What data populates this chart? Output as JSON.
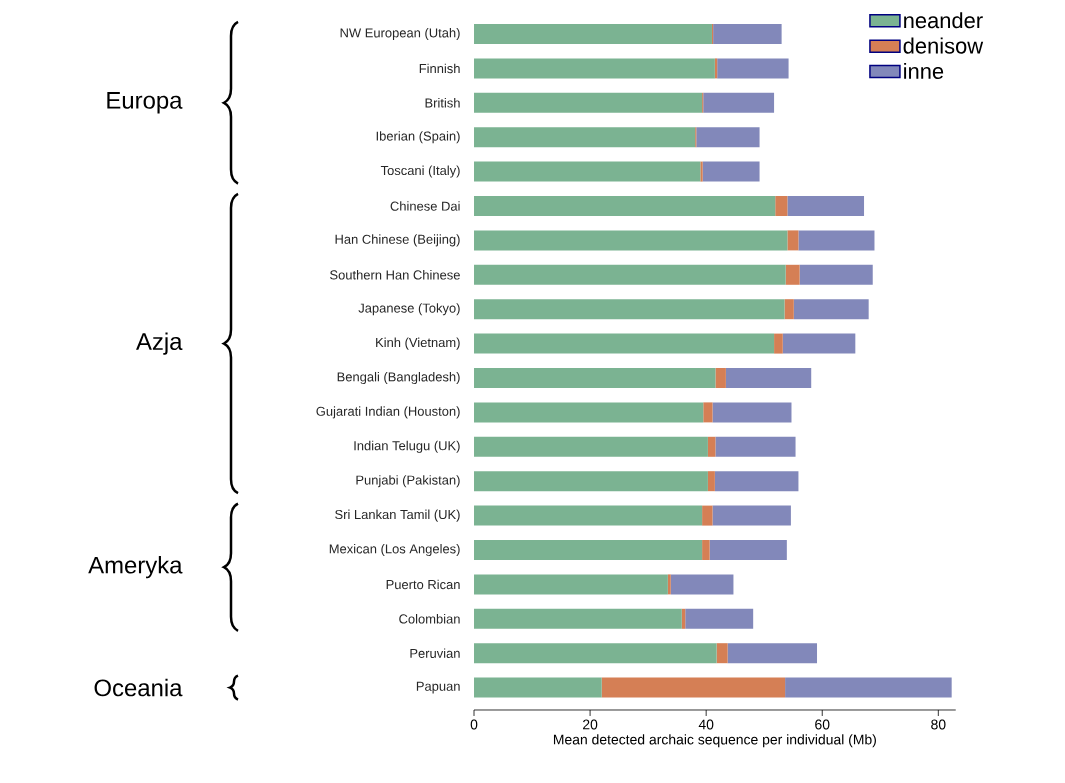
{
  "chart_data": {
    "type": "bar",
    "orientation": "horizontal",
    "stacked": true,
    "categories": [
      "NW European (Utah)",
      "Finnish",
      "British",
      "Iberian (Spain)",
      "Toscani (Italy)",
      "Chinese Dai",
      "Han Chinese (Beijing)",
      "Southern Han Chinese",
      "Japanese (Tokyo)",
      "Kinh (Vietnam)",
      "Bengali (Bangladesh)",
      "Gujarati Indian (Houston)",
      "Indian Telugu (UK)",
      "Punjabi (Pakistan)",
      "Sri Lankan Tamil (UK)",
      "Mexican (Los Angeles)",
      "Puerto Rican",
      "Colombian",
      "Peruvian",
      "Papuan"
    ],
    "series": [
      {
        "name": "neander",
        "color": "#7bb392",
        "values": [
          41.0,
          41.5,
          39.3,
          38.1,
          39.0,
          51.9,
          54.0,
          53.7,
          53.5,
          51.7,
          41.6,
          39.5,
          40.3,
          40.3,
          39.3,
          39.3,
          33.4,
          35.8,
          41.8,
          22.0
        ]
      },
      {
        "name": "denisow",
        "color": "#d57f55",
        "values": [
          0.2,
          0.4,
          0.2,
          0.2,
          0.4,
          2.1,
          1.9,
          2.4,
          1.6,
          1.5,
          1.8,
          1.6,
          1.3,
          1.2,
          1.8,
          1.3,
          0.5,
          0.6,
          1.9,
          31.6
        ]
      },
      {
        "name": "inne",
        "color": "#8288ba",
        "values": [
          11.8,
          12.3,
          12.2,
          10.9,
          9.8,
          13.2,
          13.1,
          12.6,
          12.9,
          12.5,
          14.7,
          13.6,
          13.8,
          14.4,
          13.5,
          13.3,
          10.8,
          11.7,
          15.4,
          28.7
        ]
      }
    ],
    "xlim": [
      0,
      83
    ],
    "xticks": [
      0,
      20,
      40,
      60,
      80
    ],
    "xlabel": "Mean detected archaic sequence per individual (Mb)",
    "legend": "top right",
    "annotations": [
      "Europa",
      "Azja",
      "Ameryka",
      "Oceania"
    ]
  }
}
